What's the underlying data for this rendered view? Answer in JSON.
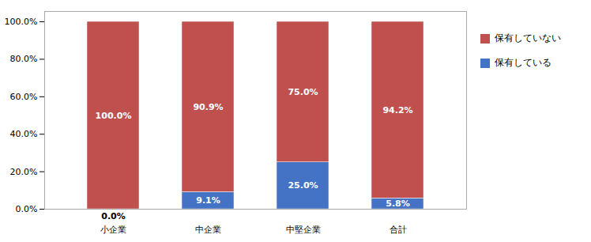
{
  "chart_data": {
    "type": "bar",
    "stacked": true,
    "categories": [
      "小企業",
      "中企業",
      "中堅企業",
      "合計"
    ],
    "series": [
      {
        "name": "保有している",
        "color": "#4472C4",
        "values": [
          0.0,
          9.1,
          25.0,
          5.8
        ],
        "value_labels": [
          "0.0%",
          "9.1%",
          "25.0%",
          "5.8%"
        ]
      },
      {
        "name": "保有していない",
        "color": "#C0504D",
        "values": [
          100.0,
          90.9,
          75.0,
          94.2
        ],
        "value_labels": [
          "100.0%",
          "90.9%",
          "75.0%",
          "94.2%"
        ]
      }
    ],
    "ylim": [
      0,
      105.5
    ],
    "yticks": [
      {
        "value": 0,
        "label": "0.0%"
      },
      {
        "value": 20,
        "label": "20.0%"
      },
      {
        "value": 40,
        "label": "40.0%"
      },
      {
        "value": 60,
        "label": "60.0%"
      },
      {
        "value": 80,
        "label": "80.0%"
      },
      {
        "value": 100,
        "label": "100.0%"
      }
    ],
    "grid": false,
    "legend": "upper right",
    "data_labels": true
  }
}
